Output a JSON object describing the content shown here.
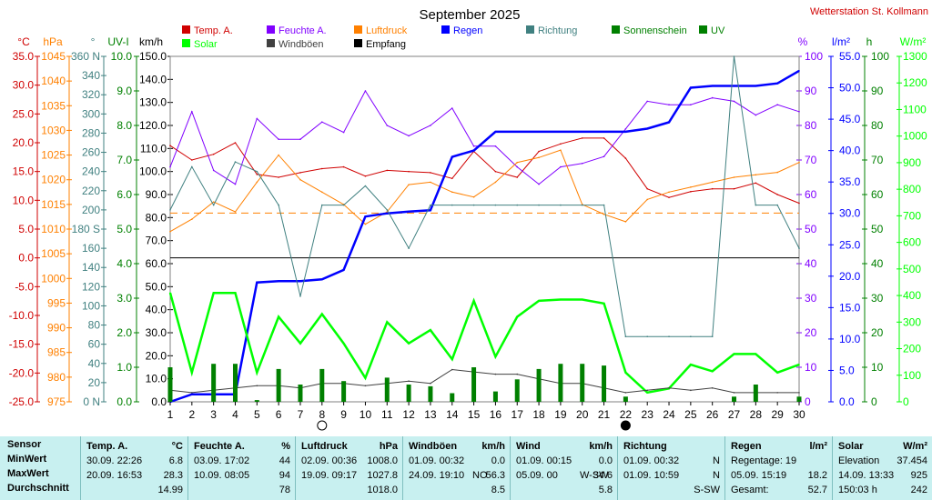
{
  "title": "September 2025",
  "station": "Wetterstation St. Kollmann",
  "axes_labels": {
    "temp": "°C",
    "press": "hPa",
    "dir": "°",
    "uvi": "UV-I",
    "kmh": "km/h",
    "pct": "%",
    "rain": "l/m²",
    "sun": "h",
    "solar": "W/m²"
  },
  "axes_ticks": {
    "temp": [
      "35.0",
      "30.0",
      "25.0",
      "20.0",
      "15.0",
      "10.0",
      "5.0",
      "0.0",
      "-5.0",
      "-10.0",
      "-15.0",
      "-20.0",
      "-25.0"
    ],
    "press": [
      "1045",
      "1040",
      "1035",
      "1030",
      "1025",
      "1020",
      "1015",
      "1010",
      "1005",
      "1000",
      "995",
      "990",
      "985",
      "980",
      "975"
    ],
    "dir": [
      "360 N",
      "340",
      "320",
      "300",
      "280",
      "260",
      "240",
      "220",
      "200",
      "180 S",
      "160",
      "140",
      "120",
      "100",
      "80",
      "60",
      "40",
      "20",
      "0 N"
    ],
    "uvi": [
      "10.0",
      "9.0",
      "8.0",
      "7.0",
      "6.0",
      "5.0",
      "4.0",
      "3.0",
      "2.0",
      "1.0",
      "0.0"
    ],
    "kmh": [
      "150.0",
      "140.0",
      "130.0",
      "120.0",
      "110.0",
      "100.0",
      "90.0",
      "80.0",
      "70.0",
      "60.0",
      "50.0",
      "40.0",
      "30.0",
      "20.0",
      "10.0",
      "0.0"
    ],
    "pct": [
      "100",
      "90",
      "80",
      "70",
      "60",
      "50",
      "40",
      "30",
      "20",
      "10",
      "0"
    ],
    "rain": [
      "55.0",
      "50.0",
      "45.0",
      "40.0",
      "35.0",
      "30.0",
      "25.0",
      "20.0",
      "15.0",
      "10.0",
      "5.0",
      "0.0"
    ],
    "sun": [
      "100",
      "90",
      "80",
      "70",
      "60",
      "50",
      "40",
      "30",
      "20",
      "10",
      "0"
    ],
    "solar": [
      "1300",
      "1200",
      "1100",
      "1000",
      "900",
      "800",
      "700",
      "600",
      "500",
      "400",
      "300",
      "200",
      "100",
      "0"
    ]
  },
  "legend": [
    {
      "label": "Temp. A.",
      "color": "#d00000"
    },
    {
      "label": "Feuchte A.",
      "color": "#8000ff"
    },
    {
      "label": "Luftdruck",
      "color": "#ff8000"
    },
    {
      "label": "Regen",
      "color": "#0000ff"
    },
    {
      "label": "Richtung",
      "color": "#408080"
    },
    {
      "label": "Sonnenschein",
      "color": "#008000"
    },
    {
      "label": "UV",
      "color": "#008000"
    },
    {
      "label": "Solar",
      "color": "#00ff00"
    },
    {
      "label": "Windböen",
      "color": "#404040"
    },
    {
      "label": "Empfang",
      "color": "#000000"
    }
  ],
  "chart_data": {
    "type": "line",
    "title": "September 2025",
    "x": [
      1,
      2,
      3,
      4,
      5,
      6,
      7,
      8,
      9,
      10,
      11,
      12,
      13,
      14,
      15,
      16,
      17,
      18,
      19,
      20,
      21,
      22,
      23,
      24,
      25,
      26,
      27,
      28,
      29,
      30
    ],
    "x_range": [
      1,
      30
    ],
    "moon_markers": [
      {
        "day": 8,
        "phase": "full"
      },
      {
        "day": 22,
        "phase": "new"
      }
    ],
    "series": [
      {
        "name": "Temp. A.",
        "unit": "°C",
        "range": [
          -25,
          35
        ],
        "color": "#d00000",
        "values": [
          19.5,
          17,
          18,
          20,
          14.5,
          14,
          14.8,
          15.5,
          15.8,
          14.2,
          15.2,
          15,
          14.8,
          13.8,
          18.5,
          15,
          14,
          18.5,
          19.8,
          20.8,
          20.8,
          17.3,
          12,
          10.5,
          11.5,
          12,
          12,
          13,
          11,
          9.5
        ]
      },
      {
        "name": "Feuchte A.",
        "unit": "%",
        "range": [
          0,
          100
        ],
        "color": "#8000ff",
        "values": [
          68,
          84,
          67,
          63,
          82,
          76,
          76,
          81,
          78,
          90,
          80,
          77,
          80,
          85,
          74,
          74,
          68,
          63,
          68,
          69,
          71,
          79,
          87,
          86,
          86,
          88,
          87,
          83,
          86,
          84
        ]
      },
      {
        "name": "Luftdruck",
        "unit": "hPa",
        "range": [
          975,
          1045
        ],
        "color": "#ff8000",
        "values": [
          1009.5,
          1012,
          1015.5,
          1013.5,
          1019.5,
          1025,
          1020,
          1017.5,
          1015,
          1011,
          1013.5,
          1019,
          1019.5,
          1017.5,
          1016.5,
          1019.5,
          1023.5,
          1024.5,
          1026,
          1015,
          1013,
          1011.5,
          1016,
          1017.5,
          1018.5,
          1019.5,
          1020.5,
          1021,
          1021.5,
          1023.5
        ]
      },
      {
        "name": "Regen",
        "unit": "l/m²",
        "range": [
          0,
          55
        ],
        "color": "#0000ff",
        "values": [
          0,
          1.2,
          1.2,
          1.2,
          19.0,
          19.2,
          19.2,
          19.5,
          21.0,
          29.5,
          30.0,
          30.3,
          30.5,
          39.0,
          40.0,
          43.0,
          43.0,
          43.0,
          43.0,
          43.0,
          43.0,
          43.0,
          43.5,
          44.5,
          50.0,
          50.3,
          50.3,
          50.3,
          50.7,
          52.7
        ]
      },
      {
        "name": "Richtung",
        "unit": "°",
        "range": [
          0,
          360
        ],
        "color": "#408080",
        "values": [
          200,
          245,
          205,
          250,
          240,
          205,
          110,
          205,
          205,
          225,
          200,
          160,
          205,
          205,
          205,
          205,
          205,
          205,
          205,
          205,
          205,
          68,
          68,
          68,
          68,
          68,
          360,
          205,
          205,
          160
        ]
      },
      {
        "name": "Solar",
        "unit": "W/m²",
        "range": [
          0,
          1300
        ],
        "color": "#00ff00",
        "values": [
          410,
          110,
          410,
          410,
          110,
          320,
          220,
          330,
          220,
          90,
          300,
          220,
          270,
          160,
          380,
          170,
          320,
          380,
          385,
          385,
          370,
          110,
          35,
          50,
          140,
          115,
          180,
          180,
          110,
          140
        ]
      },
      {
        "name": "Windböen",
        "unit": "km/h",
        "range": [
          0,
          150
        ],
        "color": "#404040",
        "values": [
          5,
          4,
          5,
          6,
          7,
          7,
          6,
          8,
          8,
          7,
          8,
          9,
          8,
          14,
          13,
          12,
          12,
          10,
          8,
          8,
          6,
          4,
          5,
          6,
          5,
          6,
          4,
          4,
          4,
          4
        ]
      },
      {
        "name": "Sonnenschein",
        "unit": "h",
        "range": [
          0,
          100
        ],
        "color": "#008000",
        "values": [
          10,
          0,
          11,
          11,
          0.5,
          9.5,
          5,
          9.5,
          6,
          0,
          7,
          5,
          4.5,
          2.5,
          10,
          3,
          6.5,
          9.5,
          11,
          11,
          10.5,
          1.5,
          0,
          0,
          0,
          0,
          1.5,
          5,
          0,
          1.5
        ]
      }
    ],
    "reference_lines": [
      {
        "axis": "temp",
        "value": 0.0,
        "label": "0.0",
        "color": "#000000",
        "style": "solid"
      },
      {
        "axis": "press",
        "value": 1013.25,
        "color": "#ff8000",
        "style": "dashed"
      }
    ]
  },
  "summary": {
    "row_labels": [
      "Sensor",
      "MinWert",
      "MaxWert",
      "Durchschnitt"
    ],
    "columns": [
      {
        "name": "Temp. A.",
        "unit": "°C",
        "min_time": "30.09.  22:26",
        "min": "6.8",
        "max_time": "20.09.  16:53",
        "max": "28.3",
        "avg": "14.99"
      },
      {
        "name": "Feuchte A.",
        "unit": "%",
        "min_time": "03.09.  17:02",
        "min": "44",
        "max_time": "10.09.  08:05",
        "max": "94",
        "avg": "78"
      },
      {
        "name": "Luftdruck",
        "unit": "hPa",
        "min_time": "02.09.  00:36",
        "min": "1008.0",
        "max_time": "19.09.  09:17",
        "max": "1027.8",
        "avg": "1018.0"
      },
      {
        "name": "Windböen",
        "unit": "km/h",
        "min_time": "01.09.  00:32",
        "min": "0.0",
        "max_time": "24.09.  19:10",
        "max": "56.3",
        "max_dir": "NO",
        "avg": "8.5"
      },
      {
        "name": "Wind",
        "unit": "km/h",
        "min_time": "01.09.  00:15",
        "min": "0.0",
        "max_time": "05.09.  00",
        "max": "34.6",
        "max_dir": "W-SW",
        "avg": "5.8"
      },
      {
        "name": "Richtung",
        "unit": "",
        "min_time": "01.09.  00:32",
        "min": "N",
        "max_time": "01.09.  10:59",
        "max": "N",
        "avg": "S-SW"
      },
      {
        "name": "Regen",
        "unit": "l/m²",
        "min_label": "Regentage: 19",
        "min": "",
        "max_time": "05.09.  15:19",
        "max": "18.2",
        "avg_label": "Gesamt:",
        "avg": "52.7"
      },
      {
        "name": "Solar",
        "unit": "W/m²",
        "min_label": "Elevation",
        "min": "37.454",
        "max_time": "14.09.  13:33",
        "max": "925",
        "avg_label": "150:03 h",
        "avg": "242"
      }
    ]
  }
}
